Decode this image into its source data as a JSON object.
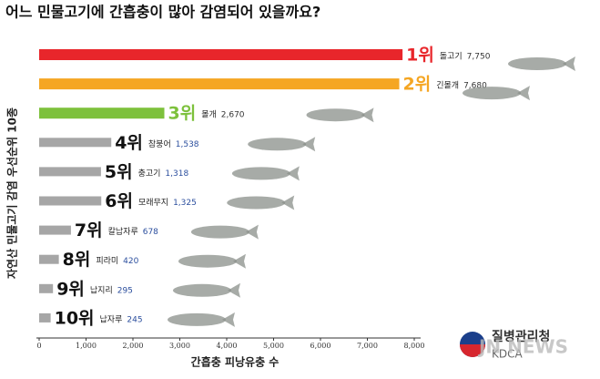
{
  "chart_data": {
    "type": "hbar",
    "title": "어느 민물고기에 간흡충이 많아 감염되어 있을까요?",
    "y_label": "자연산 민물고기 감염 우선순위 10종",
    "x_label": "간흡충 피낭유충 수",
    "ranks": [
      "1위",
      "2위",
      "3위",
      "4위",
      "5위",
      "6위",
      "7위",
      "8위",
      "9위",
      "10위"
    ],
    "categories": [
      "돌고기",
      "긴몰개",
      "몰개",
      "참붕어",
      "충고기",
      "모래무지",
      "칼납자루",
      "피라미",
      "납지리",
      "납자루"
    ],
    "values": [
      7750,
      7680,
      2670,
      1538,
      1318,
      1325,
      678,
      420,
      295,
      245
    ],
    "value_labels": [
      "7,750",
      "7,680",
      "2,670",
      "1,538",
      "1,318",
      "1,325",
      "678",
      "420",
      "295",
      "245"
    ],
    "colors": [
      "#e8262b",
      "#f5a623",
      "#7dc13c",
      "#a6a6a6",
      "#a6a6a6",
      "#a6a6a6",
      "#a6a6a6",
      "#a6a6a6",
      "#a6a6a6",
      "#a6a6a6"
    ],
    "xlim": [
      0,
      8000
    ],
    "xticks": [
      0,
      {
        "value": 1000,
        "label": "1,000"
      },
      {
        "value": 2000,
        "label": "2,000"
      },
      {
        "value": 3000,
        "label": "3,000"
      },
      {
        "value": 4000,
        "label": "4,000"
      },
      {
        "value": 5000,
        "label": "5,000"
      },
      {
        "value": 6000,
        "label": "6,000"
      },
      {
        "value": 7000,
        "label": "7,000"
      },
      {
        "value": 8000,
        "label": "8,000"
      }
    ],
    "logo": "질병관리청",
    "logo_sub": "KDCA",
    "watermark": "JN NEWS"
  }
}
